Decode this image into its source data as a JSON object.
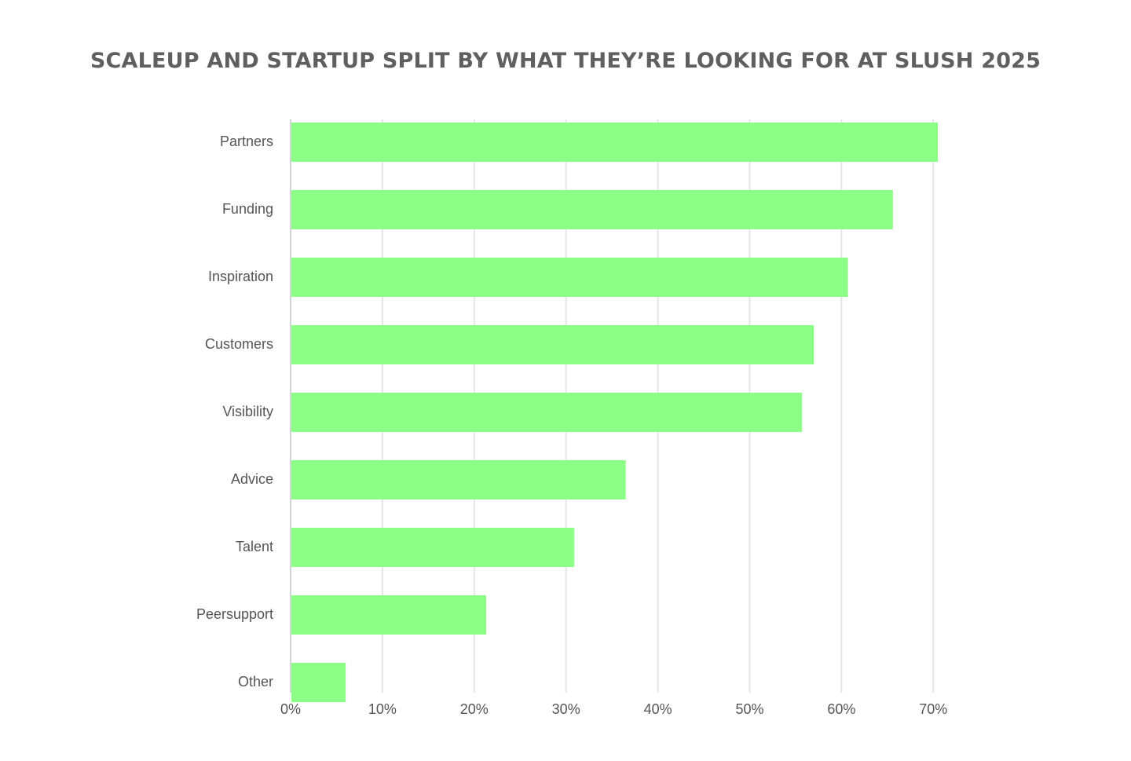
{
  "chart_data": {
    "type": "bar",
    "orientation": "horizontal",
    "title": "SCALEUP AND STARTUP SPLIT BY WHAT THEY’RE LOOKING FOR AT SLUSH 2025",
    "categories": [
      "Partners",
      "Funding",
      "Inspiration",
      "Customers",
      "Visibility",
      "Advice",
      "Talent",
      "Peersupport",
      "Other"
    ],
    "values": [
      70.5,
      65.6,
      60.7,
      57.0,
      55.7,
      36.5,
      30.9,
      21.3,
      6.0
    ],
    "xlim": [
      0,
      70
    ],
    "x_ticks": [
      0,
      10,
      20,
      30,
      40,
      50,
      60,
      70
    ],
    "x_tick_labels": [
      "0%",
      "10%",
      "20%",
      "30%",
      "40%",
      "50%",
      "60%",
      "70%"
    ],
    "xlabel": "",
    "ylabel": "",
    "grid": "vertical",
    "bar_color": "#8cff87",
    "grid_color": "#e4e4e4",
    "text_color": "#555555"
  }
}
